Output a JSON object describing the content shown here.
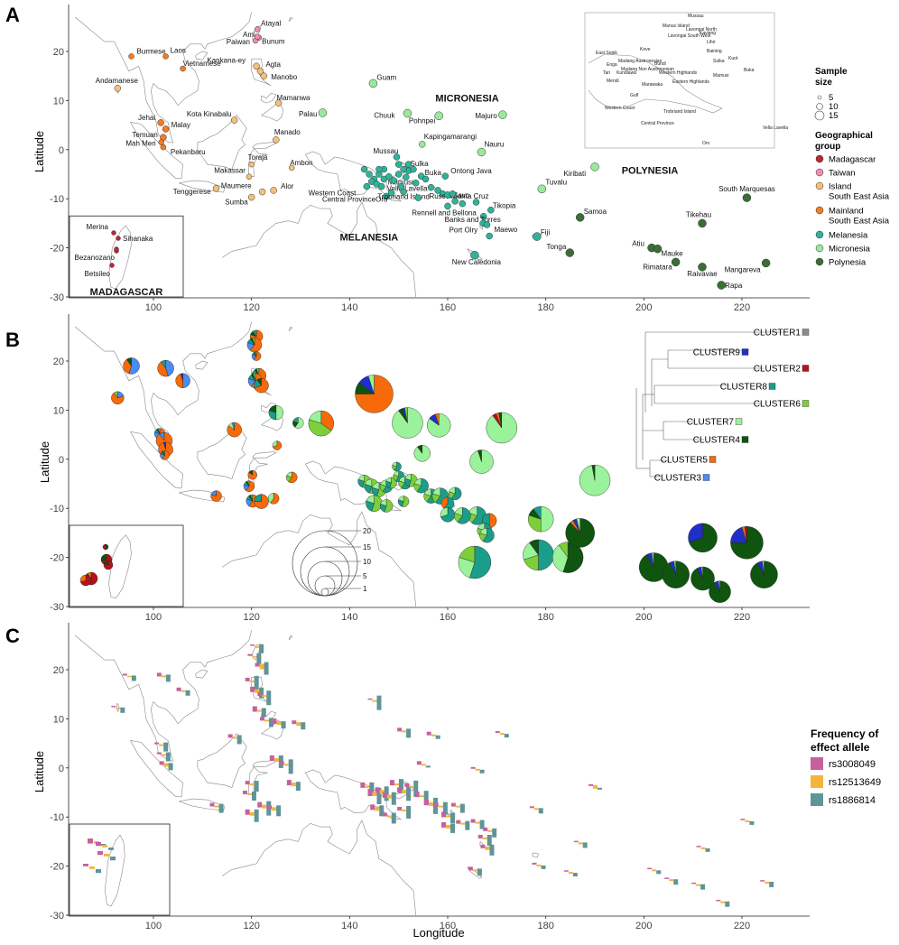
{
  "panels": {
    "A": {
      "letter": "A",
      "ylabel": "Latitude"
    },
    "B": {
      "letter": "B",
      "ylabel": "Latitude"
    },
    "C": {
      "letter": "C",
      "ylabel": "Latitude",
      "xlabel": "Longitude"
    }
  },
  "axes": {
    "x_ticks": [
      "100",
      "120",
      "140",
      "160",
      "180",
      "200",
      "220"
    ],
    "y_ticks": [
      "20",
      "10",
      "0",
      "-10",
      "-20",
      "-30"
    ]
  },
  "regions": {
    "micronesia": "MICRONESIA",
    "polynesia": "POLYNESIA",
    "melanesia": "MELANESIA",
    "madagascar": "MADAGASCAR"
  },
  "legend_A": {
    "size_title_1": "Sample",
    "size_title_2": "size",
    "sizes": [
      "5",
      "10",
      "15"
    ],
    "group_title_1": "Geographical",
    "group_title_2": "group",
    "groups": [
      {
        "label": "Madagascar",
        "color": "#c0282d"
      },
      {
        "label": "Taiwan",
        "color": "#f08cb4"
      },
      {
        "label": "Island",
        "label2": "South East Asia",
        "color": "#f5c07a"
      },
      {
        "label": "Mainland",
        "label2": "South East Asia",
        "color": "#f57b22"
      },
      {
        "label": "Melanesia",
        "color": "#2fb39a"
      },
      {
        "label": "Micronesia",
        "color": "#9ae89c"
      },
      {
        "label": "Polynesia",
        "color": "#3a6e35"
      }
    ]
  },
  "populations_A": [
    {
      "name": "Ami",
      "group": 1
    },
    {
      "name": "Atayal",
      "group": 1
    },
    {
      "name": "Paiwan",
      "group": 1
    },
    {
      "name": "Bunum",
      "group": 1
    },
    {
      "name": "Burmese",
      "group": 3
    },
    {
      "name": "Laos",
      "group": 3
    },
    {
      "name": "Vietnamese",
      "group": 3
    },
    {
      "name": "Kankana-ey",
      "group": 2
    },
    {
      "name": "Manobo",
      "group": 2
    },
    {
      "name": "Agta",
      "group": 2
    },
    {
      "name": "Andamanese",
      "group": 2
    },
    {
      "name": "Jehai",
      "group": 3
    },
    {
      "name": "Malay",
      "group": 3
    },
    {
      "name": "Temuan",
      "group": 3
    },
    {
      "name": "Mah Meri",
      "group": 3
    },
    {
      "name": "Pekanbaru",
      "group": 3
    },
    {
      "name": "Kota Kinabalu",
      "group": 2
    },
    {
      "name": "Mamanwa",
      "group": 2
    },
    {
      "name": "Manado",
      "group": 2
    },
    {
      "name": "Toraja",
      "group": 2
    },
    {
      "name": "Makassar",
      "group": 2
    },
    {
      "name": "Ambon",
      "group": 2
    },
    {
      "name": "Maumere",
      "group": 2
    },
    {
      "name": "Alor",
      "group": 2
    },
    {
      "name": "Sumba",
      "group": 2
    },
    {
      "name": "Tenggerese",
      "group": 2
    },
    {
      "name": "Palau",
      "group": 5
    },
    {
      "name": "Guam",
      "group": 5
    },
    {
      "name": "Chuuk",
      "group": 5
    },
    {
      "name": "Pohnpei",
      "group": 5
    },
    {
      "name": "Kapingamarangi",
      "group": 5
    },
    {
      "name": "Majuro",
      "group": 5
    },
    {
      "name": "Nauru",
      "group": 5
    },
    {
      "name": "Kiribati",
      "group": 5
    },
    {
      "name": "Tuvalu",
      "group": 5
    },
    {
      "name": "Mussau",
      "group": 4
    },
    {
      "name": "Sulka",
      "group": 4
    },
    {
      "name": "Buka",
      "group": 4
    },
    {
      "name": "Vella Lavella",
      "group": 4
    },
    {
      "name": "Western Coast",
      "group": 4
    },
    {
      "name": "Mamusi",
      "group": 4
    },
    {
      "name": "Central Province",
      "group": 4
    },
    {
      "name": "Trobriand Island",
      "group": 4
    },
    {
      "name": "Oro",
      "group": 4
    },
    {
      "name": "Russell",
      "group": 4
    },
    {
      "name": "Savo",
      "group": 4
    },
    {
      "name": "Ontong Java",
      "group": 4
    },
    {
      "name": "Santa Cruz",
      "group": 4
    },
    {
      "name": "Tikopia",
      "group": 4
    },
    {
      "name": "Banks and Torres",
      "group": 4
    },
    {
      "name": "Rennell and Bellona",
      "group": 4
    },
    {
      "name": "Port Olry",
      "group": 4
    },
    {
      "name": "Maewo",
      "group": 4
    },
    {
      "name": "New Caledonia",
      "group": 4
    },
    {
      "name": "Fiji",
      "group": 4
    },
    {
      "name": "Samoa",
      "group": 6
    },
    {
      "name": "Tonga",
      "group": 6
    },
    {
      "name": "Atiu",
      "group": 6
    },
    {
      "name": "Mauke",
      "group": 6
    },
    {
      "name": "Rimatara",
      "group": 6
    },
    {
      "name": "Raivavae",
      "group": 6
    },
    {
      "name": "Tikehau",
      "group": 6
    },
    {
      "name": "Mangareva",
      "group": 6
    },
    {
      "name": "Rapa",
      "group": 6
    },
    {
      "name": "South Marquesas",
      "group": 6
    },
    {
      "name": "Merina",
      "group": 0
    },
    {
      "name": "Sihanaka",
      "group": 0
    },
    {
      "name": "Bezanozano",
      "group": 0
    },
    {
      "name": "Betsileo",
      "group": 0
    }
  ],
  "png_inset": {
    "labels": [
      "Mussau",
      "Manus Island",
      "Lavongai North",
      "Lavongai South West",
      "Kavieng",
      "Lihir",
      "Kove",
      "East Sepik",
      "Baining",
      "Kuot",
      "Madang Austronesian",
      "Bundi",
      "Enga",
      "Madang Non Austronesian",
      "Sulka",
      "Tari",
      "Kundiawa",
      "Western Highlands",
      "Mamusi",
      "Buka",
      "Mendi",
      "Marawaka",
      "Eastern Highlands",
      "Gulf",
      "Western Coast",
      "Trobriand Island",
      "Vella Lavella",
      "Central Province",
      "Oro"
    ]
  },
  "clusters": {
    "labels": [
      "CLUSTER1",
      "CLUSTER9",
      "CLUSTER2",
      "CLUSTER8",
      "CLUSTER6",
      "CLUSTER7",
      "CLUSTER4",
      "CLUSTER5",
      "CLUSTER3"
    ],
    "colors": [
      "#8c8c8c",
      "#1f2fc8",
      "#b5121b",
      "#1a9d8a",
      "#7ccf3a",
      "#9af29a",
      "#0f540f",
      "#f76a0a",
      "#4a8cf0"
    ]
  },
  "size_legend_B": [
    "20",
    "15",
    "10",
    "5",
    "1"
  ],
  "legend_C": {
    "title_1": "Frequency of",
    "title_2": "effect allele",
    "items": [
      {
        "label": "rs3008049",
        "color": "#c6609f"
      },
      {
        "label": "rs12513649",
        "color": "#f5b43c"
      },
      {
        "label": "rs1886814",
        "color": "#5f9498"
      }
    ]
  }
}
